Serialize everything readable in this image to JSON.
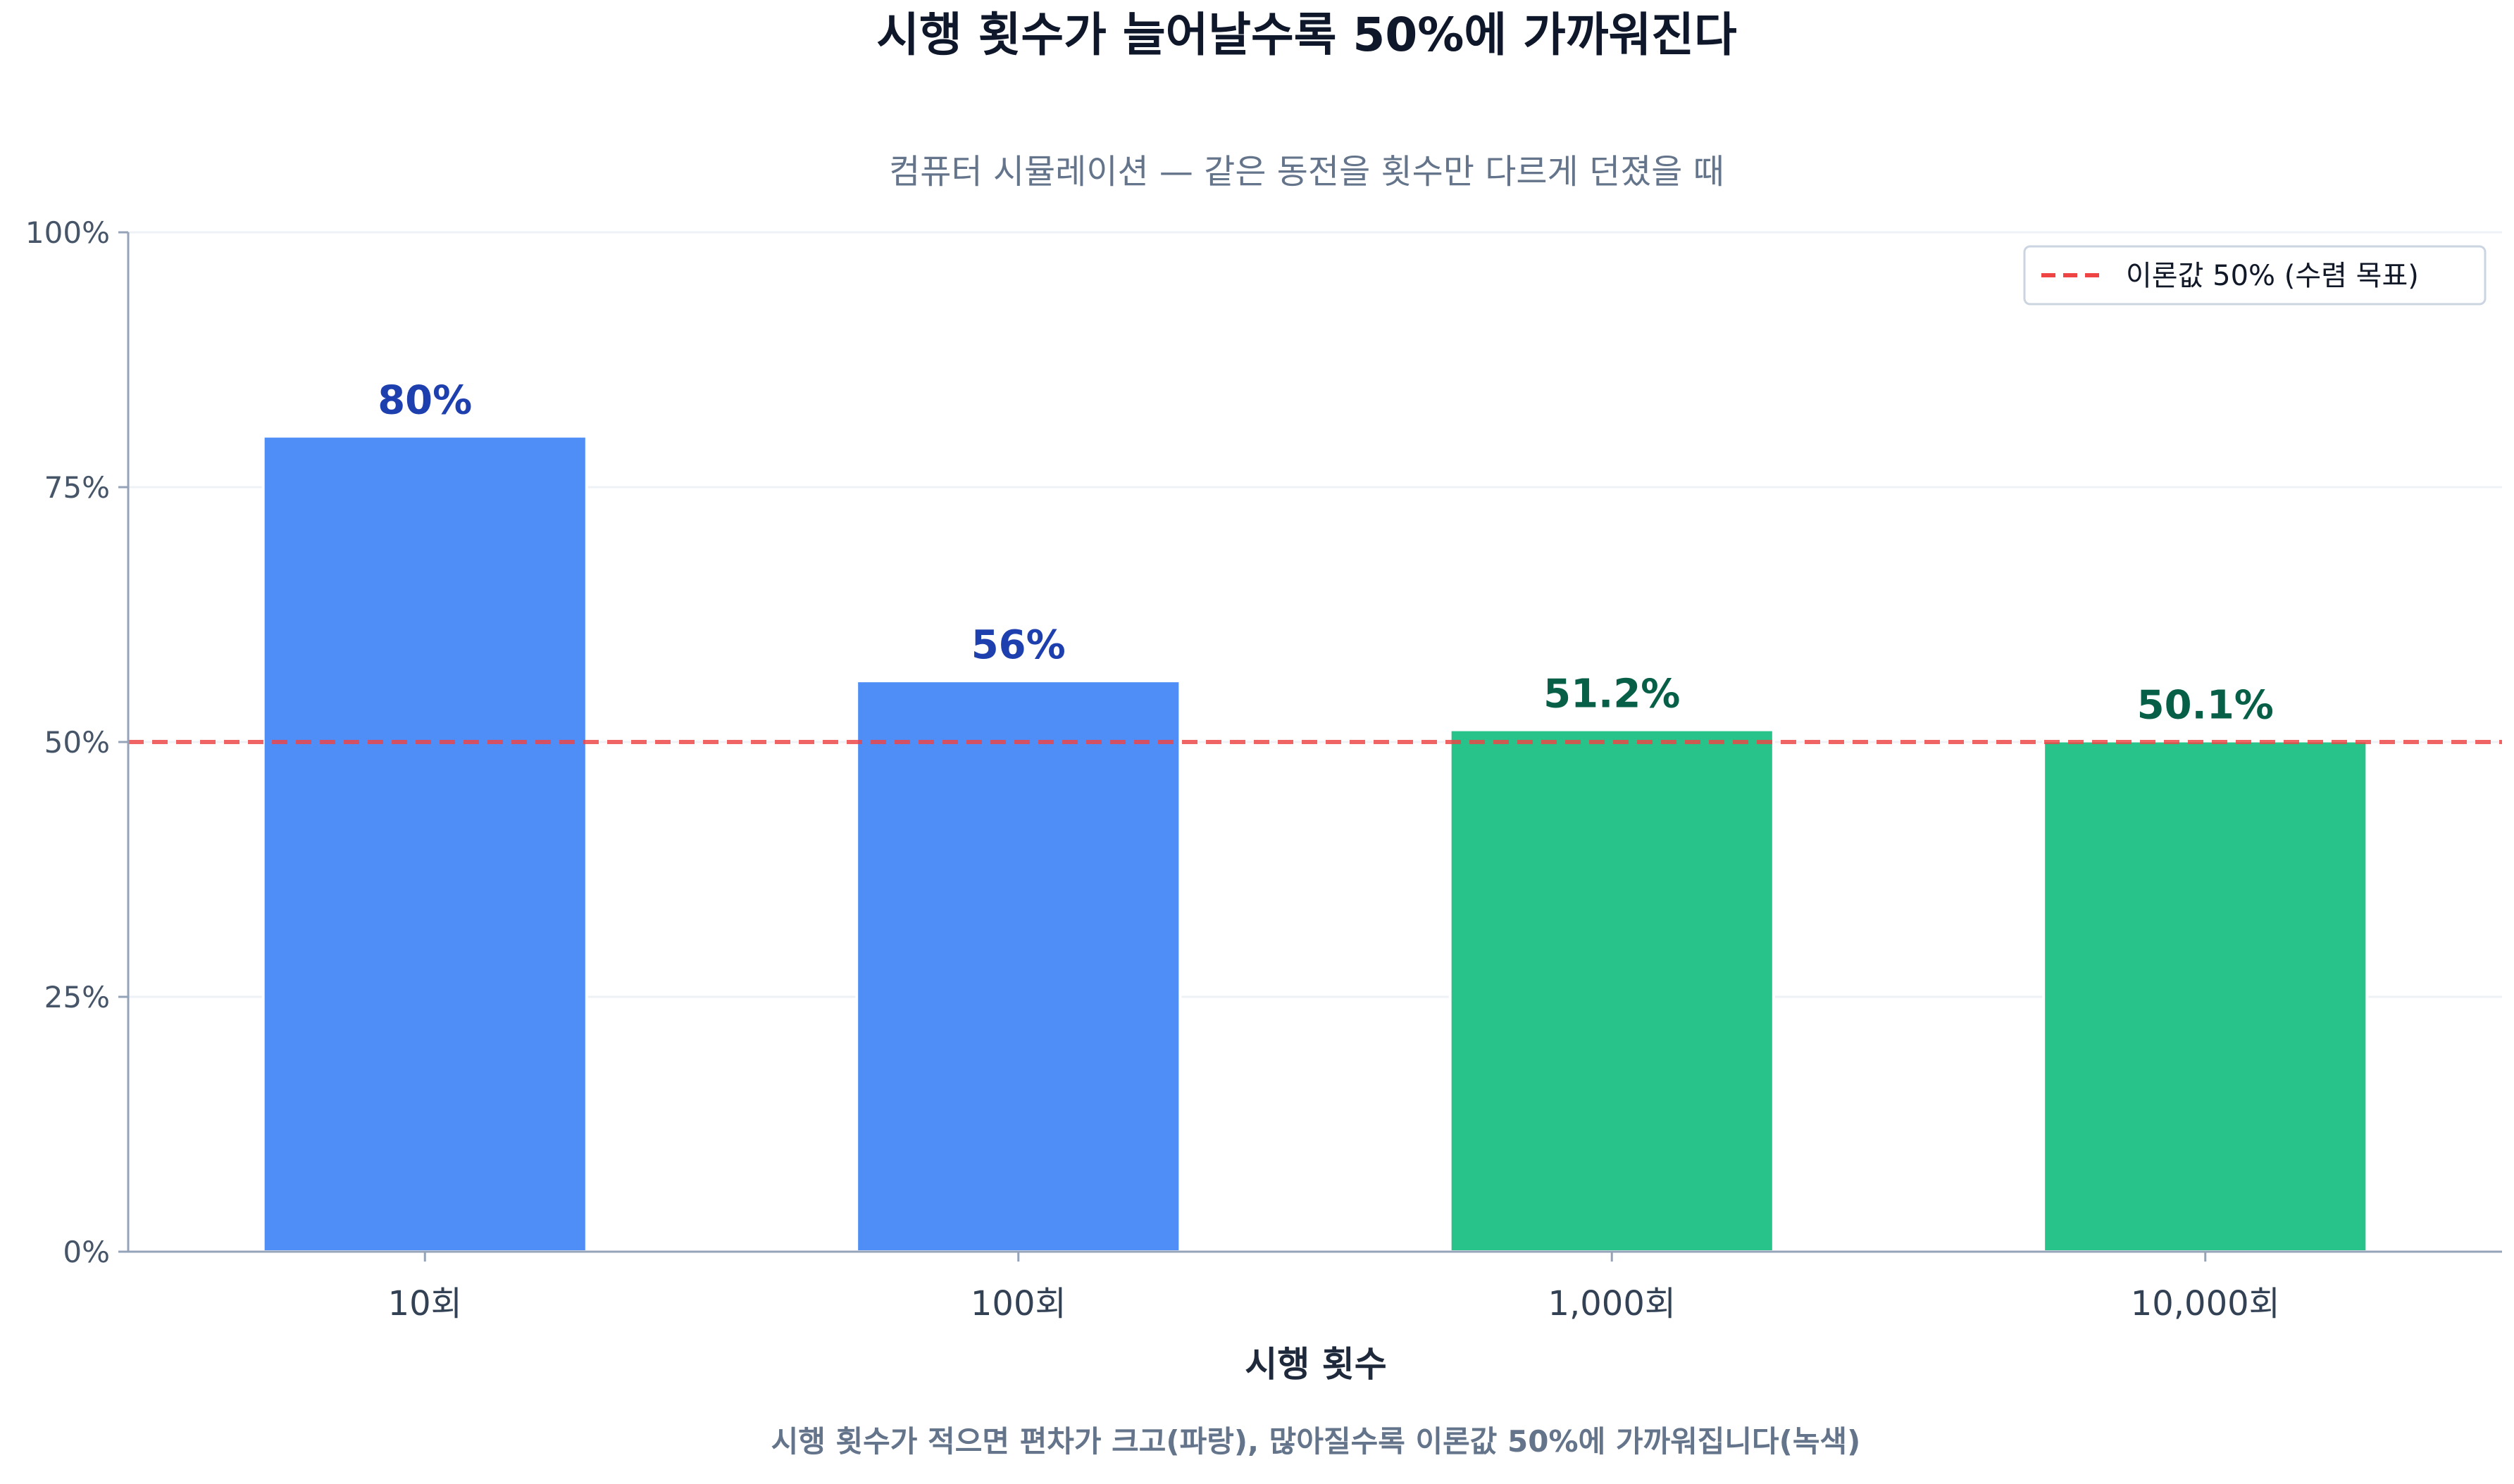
{
  "chart_data": {
    "type": "bar",
    "title": "시행 횟수가 늘어날수록 50%에 가까워진다",
    "subtitle": "컴퓨터 시뮬레이션 — 같은 동전을 횟수만 다르게 던졌을 때",
    "xlabel": "시행 횟수",
    "ylabel": "",
    "caption": "시행 횟수가 적으면 편차가 크고(파랑), 많아질수록 이론값 50%에 가까워집니다(녹색)",
    "categories": [
      "10회",
      "100회",
      "1,000회",
      "10,000회"
    ],
    "values": [
      80,
      56,
      51.2,
      50.1
    ],
    "value_labels": [
      "80%",
      "56%",
      "51.2%",
      "50.1%"
    ],
    "bar_groups": [
      "small",
      "small",
      "large",
      "large"
    ],
    "ylim": [
      0,
      100
    ],
    "yticks": [
      0,
      25,
      50,
      75,
      100
    ],
    "ytick_labels": [
      "0%",
      "25%",
      "50%",
      "75%",
      "100%"
    ],
    "reference_line": {
      "value": 50,
      "label": "이론값 50% (수렴 목표)",
      "style": "dashed"
    },
    "grid": "horizontal",
    "legend_position": "top-right",
    "colors": {
      "small_bar": "#4f8ef7",
      "small_label": "#1e40af",
      "large_bar": "#28c28b",
      "large_label": "#065f46",
      "reference_line": "#ef4444"
    }
  }
}
